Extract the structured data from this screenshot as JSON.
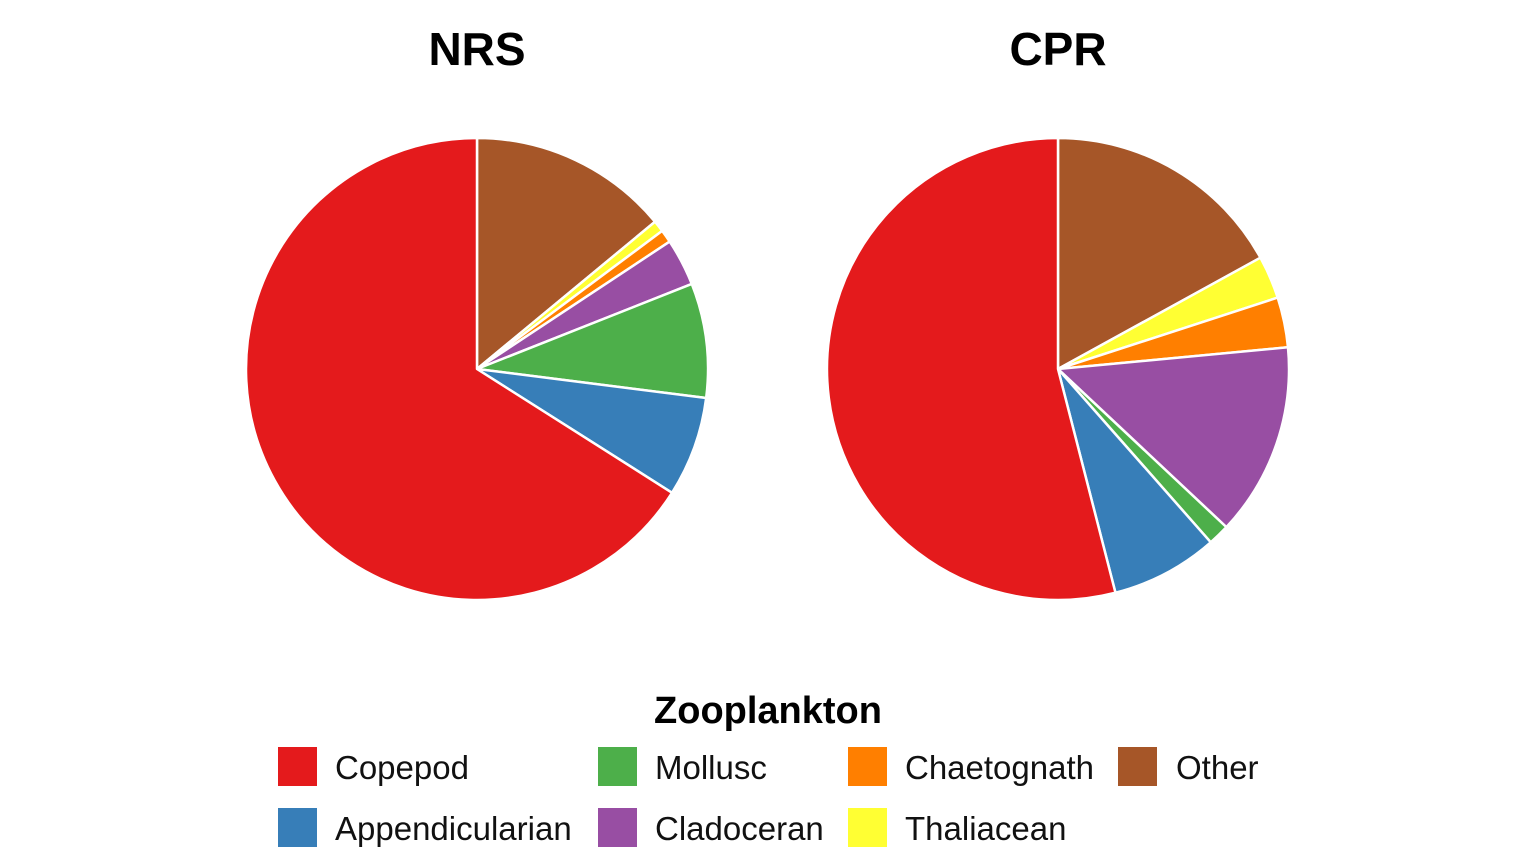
{
  "chart_data": [
    {
      "type": "pie",
      "title": "NRS",
      "slices": [
        {
          "category": "Other",
          "value": 14.0
        },
        {
          "category": "Thaliacean",
          "value": 0.8
        },
        {
          "category": "Chaetognath",
          "value": 0.9
        },
        {
          "category": "Cladoceran",
          "value": 3.3
        },
        {
          "category": "Mollusc",
          "value": 8.0
        },
        {
          "category": "Appendicularian",
          "value": 7.0
        },
        {
          "category": "Copepod",
          "value": 66.0
        }
      ]
    },
    {
      "type": "pie",
      "title": "CPR",
      "slices": [
        {
          "category": "Other",
          "value": 17.0
        },
        {
          "category": "Thaliacean",
          "value": 3.0
        },
        {
          "category": "Chaetognath",
          "value": 3.5
        },
        {
          "category": "Cladoceran",
          "value": 13.5
        },
        {
          "category": "Mollusc",
          "value": 1.5
        },
        {
          "category": "Appendicularian",
          "value": 7.5
        },
        {
          "category": "Copepod",
          "value": 54.0
        }
      ]
    }
  ],
  "legend": {
    "title": "Zooplankton",
    "placement": "bottom",
    "entries": [
      {
        "label": "Copepod",
        "color": "#E41A1C"
      },
      {
        "label": "Appendicularian",
        "color": "#377EB8"
      },
      {
        "label": "Mollusc",
        "color": "#4DAF4A"
      },
      {
        "label": "Cladoceran",
        "color": "#984EA3"
      },
      {
        "label": "Chaetognath",
        "color": "#FF7F00"
      },
      {
        "label": "Thaliacean",
        "color": "#FFFF33"
      },
      {
        "label": "Other",
        "color": "#A65628"
      }
    ]
  }
}
